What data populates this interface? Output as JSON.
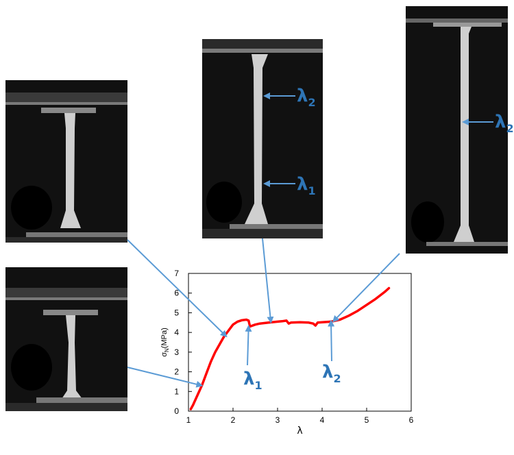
{
  "colors": {
    "curve": "#ff0000",
    "arrow": "#5b9bd5",
    "label": "#2e75b6",
    "photo_bg": "#111111",
    "specimen": "#cfcfcf"
  },
  "photos": [
    {
      "name": "photo-early-stretch",
      "label": ""
    },
    {
      "name": "photo-neck-onset",
      "label": ""
    },
    {
      "name": "photo-neck-propagation",
      "label": "λ"
    },
    {
      "name": "photo-full-drawn",
      "label": "λ"
    }
  ],
  "photo_labels": {
    "neck_top": {
      "sym": "λ",
      "sub": "2"
    },
    "neck_bottom": {
      "sym": "λ",
      "sub": "1"
    },
    "full_drawn": {
      "sym": "λ",
      "sub": "2"
    }
  },
  "chart_labels": {
    "lambda1": {
      "sym": "λ",
      "sub": "1"
    },
    "lambda2": {
      "sym": "λ",
      "sub": "2"
    }
  },
  "chart_data": {
    "type": "line",
    "ylabel": "σN(MPa)",
    "ylabel_main": "σ",
    "ylabel_sub": "N",
    "ylabel_unit": "(MPa)",
    "xlabel": "λ",
    "xlim": [
      1,
      6
    ],
    "ylim": [
      0,
      7
    ],
    "x_ticks": [
      "1",
      "2",
      "3",
      "4",
      "5",
      "6"
    ],
    "y_ticks": [
      "0",
      "1",
      "2",
      "3",
      "4",
      "5",
      "6",
      "7"
    ],
    "grid": false,
    "series": [
      {
        "x": [
          1.05,
          1.1,
          1.2,
          1.3,
          1.4,
          1.5,
          1.6,
          1.7,
          1.8,
          1.9,
          2.0,
          2.1,
          2.2,
          2.3,
          2.35,
          2.38,
          2.4,
          2.5,
          2.6,
          2.8,
          3.0,
          3.1,
          3.2,
          3.25,
          3.3,
          3.5,
          3.7,
          3.8,
          3.85,
          3.9,
          4.0,
          4.2,
          4.4,
          4.6,
          4.8,
          5.0,
          5.2,
          5.4,
          5.5
        ],
        "y": [
          0.1,
          0.3,
          0.8,
          1.3,
          1.9,
          2.5,
          3.0,
          3.4,
          3.8,
          4.1,
          4.4,
          4.55,
          4.62,
          4.65,
          4.6,
          4.3,
          4.32,
          4.4,
          4.45,
          4.5,
          4.55,
          4.57,
          4.6,
          4.45,
          4.5,
          4.52,
          4.5,
          4.45,
          4.35,
          4.5,
          4.52,
          4.55,
          4.65,
          4.85,
          5.1,
          5.4,
          5.7,
          6.05,
          6.25
        ]
      }
    ]
  }
}
